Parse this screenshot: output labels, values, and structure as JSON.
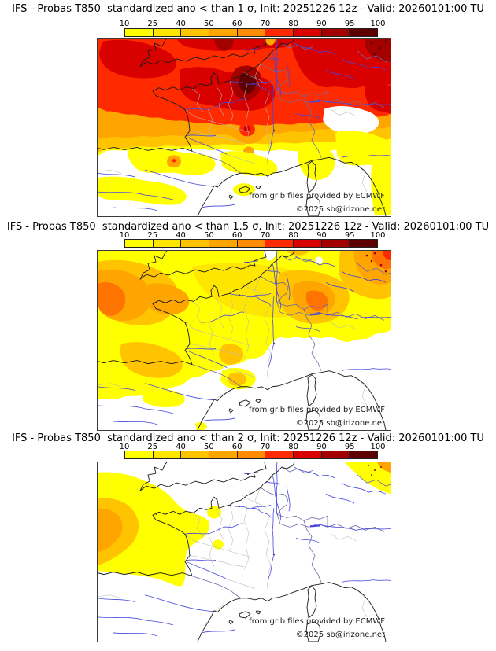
{
  "panels": [
    {
      "sigma_threshold": "1",
      "title": "IFS - Probas T850  standardized ano < than 1 σ, Init: 20251226 12z - Valid: 20260101:00 TU"
    },
    {
      "sigma_threshold": "1.5",
      "title": "IFS - Probas T850  standardized ano < than 1.5 σ, Init: 20251226 12z - Valid: 20260101:00 TU"
    },
    {
      "sigma_threshold": "2",
      "title": "IFS - Probas T850  standardized ano < than 2 σ, Init: 20251226 12z - Valid: 20260101:00 TU"
    }
  ],
  "colorbar": {
    "ticks": [
      "10",
      "25",
      "40",
      "50",
      "60",
      "70",
      "80",
      "90",
      "95",
      "100"
    ],
    "segment_colors": [
      "#ffff00",
      "#ffe600",
      "#ffc300",
      "#ffa500",
      "#ff8c00",
      "#ff2a00",
      "#d90000",
      "#a30000",
      "#5f0000"
    ]
  },
  "attribution": {
    "line1": "from grib files provided by ECMWF",
    "line2": "©2025 sb@irizone.net"
  },
  "style_colors": {
    "deep_orange": "#ff7300",
    "coast": "#1a1a1a",
    "river": "#4646dd",
    "department": "#b9b9b9",
    "border": "#6f6aa8",
    "map_background": "#ffffff"
  }
}
